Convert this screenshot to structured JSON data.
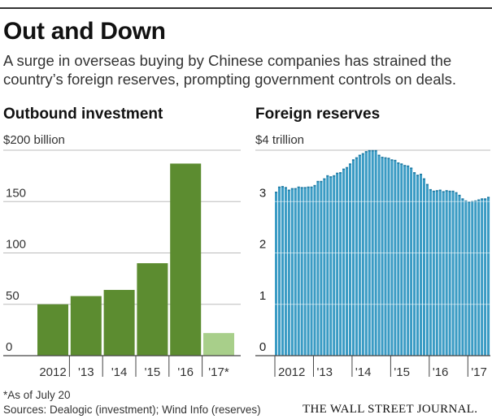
{
  "header": {
    "title": "Out and Down",
    "subtitle": "A surge in overseas buying by Chinese companies has strained the country’s foreign reserves, prompting government controls on deals."
  },
  "panels": {
    "left_title": "Outbound investment",
    "right_title": "Foreign reserves"
  },
  "footer": {
    "note": "*As of July 20",
    "sources": "Sources: Dealogic (investment); Wind Info (reserves)",
    "credit": "THE WALL STREET JOURNAL."
  },
  "colors": {
    "bar": "#5c8c30",
    "bar_partial": "#a8cf8a",
    "reserves": "#3a9bc4",
    "reserves_dark": "#1f7aa3",
    "grid": "#bbbbbb",
    "axis": "#444444"
  },
  "chart_data": [
    {
      "type": "bar",
      "title": "Outbound investment",
      "categories": [
        "2012",
        "'13",
        "'14",
        "'15",
        "'16",
        "'17*"
      ],
      "values": [
        50,
        58,
        64,
        90,
        187,
        22
      ],
      "partial_year": "'17*",
      "ylim": [
        0,
        200
      ],
      "yticks": [
        0,
        50,
        100,
        150
      ],
      "ytick_labels": [
        "0",
        "50",
        "100",
        "150"
      ],
      "ylabel": "$200 billion",
      "grid": true
    },
    {
      "type": "bar",
      "title": "Foreign reserves",
      "x_start": "2012-01",
      "x_end": "2017-07",
      "x_tick_labels": [
        "2012",
        "'13",
        "'14",
        "'15",
        "'16",
        "'17"
      ],
      "values": [
        3.18,
        3.28,
        3.29,
        3.27,
        3.22,
        3.25,
        3.25,
        3.28,
        3.27,
        3.27,
        3.28,
        3.28,
        3.31,
        3.39,
        3.39,
        3.44,
        3.5,
        3.48,
        3.5,
        3.55,
        3.56,
        3.63,
        3.66,
        3.73,
        3.81,
        3.85,
        3.9,
        3.93,
        3.97,
        3.99,
        3.99,
        3.99,
        3.9,
        3.86,
        3.85,
        3.84,
        3.81,
        3.8,
        3.75,
        3.73,
        3.7,
        3.69,
        3.65,
        3.56,
        3.51,
        3.53,
        3.44,
        3.33,
        3.23,
        3.2,
        3.21,
        3.22,
        3.19,
        3.21,
        3.2,
        3.2,
        3.17,
        3.12,
        3.05,
        3.01,
        2.99,
        3.0,
        3.01,
        3.03,
        3.05,
        3.05,
        3.08
      ],
      "ylim": [
        0,
        4
      ],
      "yticks": [
        0,
        1,
        2,
        3
      ],
      "ytick_labels": [
        "0",
        "1",
        "2",
        "3"
      ],
      "ylabel": "$4 trillion",
      "grid": true
    }
  ]
}
